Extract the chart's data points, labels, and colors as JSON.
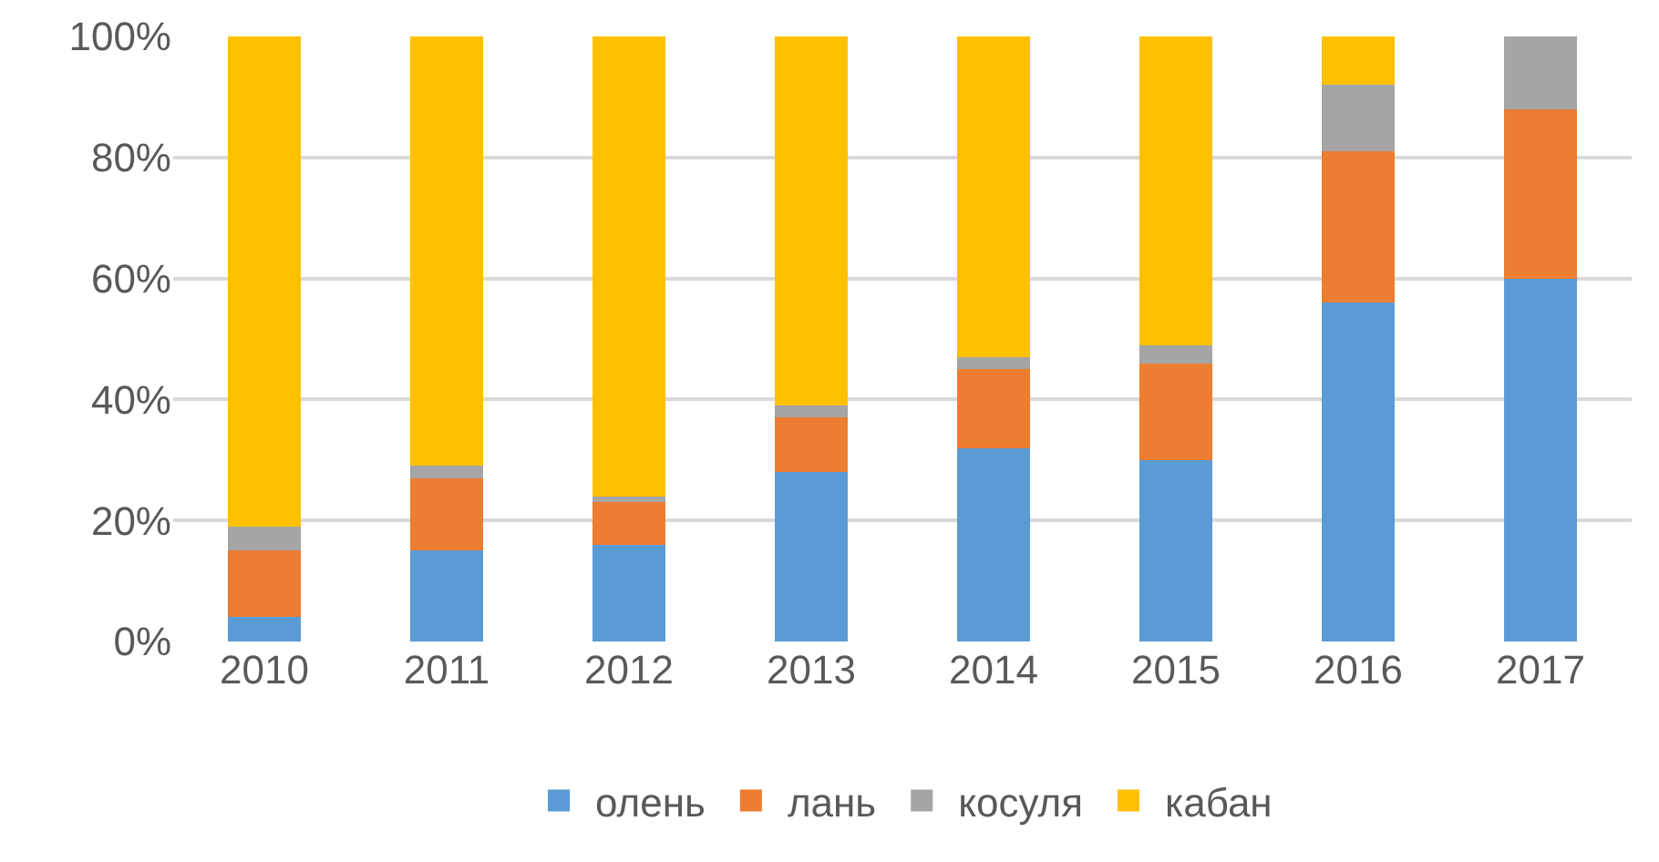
{
  "chart_data": {
    "type": "bar",
    "stacked": true,
    "categories": [
      "2010",
      "2011",
      "2012",
      "2013",
      "2014",
      "2015",
      "2016",
      "2017"
    ],
    "series": [
      {
        "name": "олень",
        "color": "#5b9bd5",
        "values": [
          4,
          15,
          16,
          28,
          32,
          30,
          56,
          60
        ]
      },
      {
        "name": "лань",
        "color": "#ed7d31",
        "values": [
          11,
          12,
          7,
          9,
          13,
          16,
          25,
          28
        ]
      },
      {
        "name": "косуля",
        "color": "#a5a5a5",
        "values": [
          4,
          2,
          1,
          2,
          2,
          3,
          11,
          12
        ]
      },
      {
        "name": "кабан",
        "color": "#ffc000",
        "values": [
          81,
          71,
          76,
          61,
          53,
          51,
          8,
          0
        ]
      }
    ],
    "ylim": [
      0,
      100
    ],
    "yticks": [
      {
        "value": 0,
        "label": "0%"
      },
      {
        "value": 20,
        "label": "20%"
      },
      {
        "value": 40,
        "label": "40%"
      },
      {
        "value": 60,
        "label": "60%"
      },
      {
        "value": 80,
        "label": "80%"
      },
      {
        "value": 100,
        "label": "100%"
      }
    ],
    "grid": "y",
    "legend": "bottom"
  }
}
